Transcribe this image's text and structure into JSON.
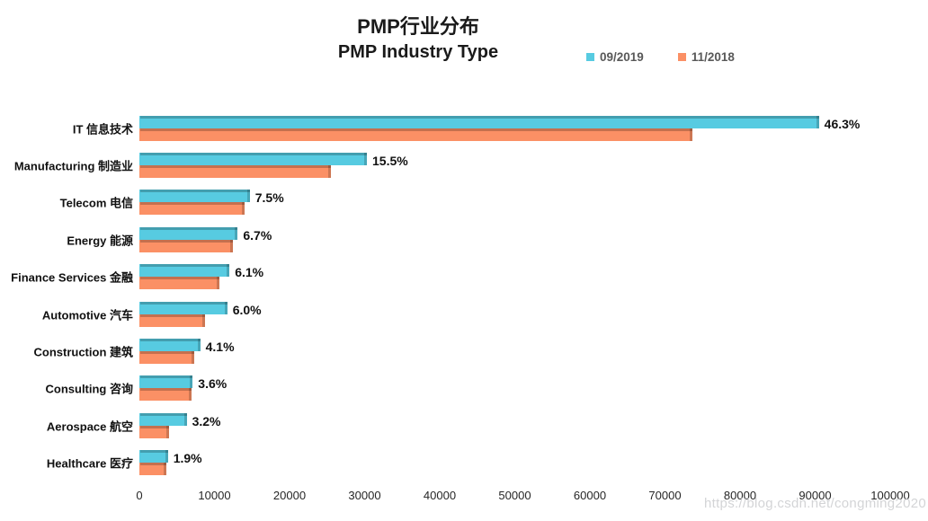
{
  "title": {
    "line1": "PMP行业分布",
    "line2": "PMP Industry Type"
  },
  "watermark": "https://blog.csdn.net/congming2020",
  "colors": {
    "series_2019": "#57cbe1",
    "series_2018": "#fb9065",
    "legend_text": "#595959",
    "label_text": "#111111"
  },
  "chart_data": {
    "type": "bar",
    "orientation": "horizontal",
    "title": "PMP行业分布 / PMP Industry Type",
    "categories": [
      "IT 信息技术",
      "Manufacturing 制造业",
      "Telecom 电信",
      "Energy 能源",
      "Finance Services 金融",
      "Automotive 汽车",
      "Construction 建筑",
      "Consulting 咨询",
      "Aerospace 航空",
      "Healthcare 医疗"
    ],
    "series": [
      {
        "name": "09/2019",
        "color": "#57cbe1",
        "values": [
          90500,
          30300,
          14700,
          13100,
          12000,
          11700,
          8100,
          7100,
          6300,
          3800
        ]
      },
      {
        "name": "11/2018",
        "color": "#fb9065",
        "values": [
          73700,
          25500,
          14000,
          12500,
          10700,
          8700,
          7300,
          6900,
          3900,
          3600
        ]
      }
    ],
    "bar_labels": [
      "46.3%",
      "15.5%",
      "7.5%",
      "6.7%",
      "6.1%",
      "6.0%",
      "4.1%",
      "3.6%",
      "3.2%",
      "1.9%"
    ],
    "bar_labels_note": "percentage labels shown at end of 09/2019 bars",
    "xlim": [
      0,
      100000
    ],
    "x_ticks": [
      0,
      10000,
      20000,
      30000,
      40000,
      50000,
      60000,
      70000,
      80000,
      90000,
      100000
    ],
    "grid": false,
    "legend_position": "top-right",
    "values_are_estimates": true
  }
}
